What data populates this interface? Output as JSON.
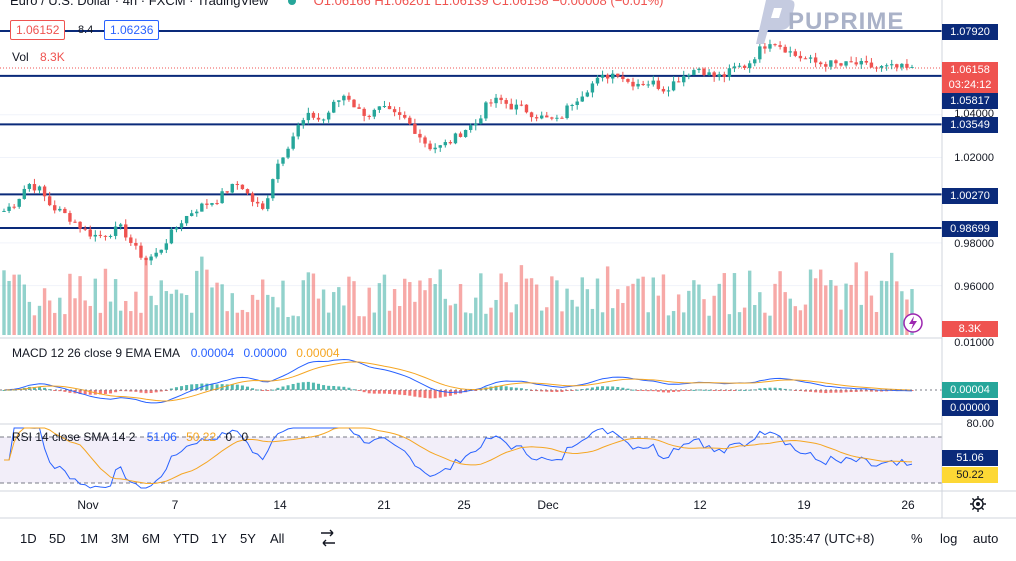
{
  "header": {
    "title": "Euro / U.S. Dollar · 4h · FXCM · TradingView",
    "ohlc": "O1.06166  H1.06201  L1.06139  C1.06158  −0.00008 (−0.01%)"
  },
  "quote": {
    "bid": "1.06152",
    "spread": "8.4",
    "ask": "1.06236"
  },
  "volume": {
    "label": "Vol",
    "value": "8.3K",
    "badge": "8.3K"
  },
  "watermark": {
    "brand": "PUPRIME"
  },
  "price_axis": {
    "ticks": [
      "1.04000",
      "1.02000",
      "0.98000",
      "0.96000"
    ],
    "levels": [
      "1.07920",
      "1.05817",
      "1.03549",
      "1.00270",
      "0.98699"
    ],
    "last_price": "1.06158",
    "countdown": "03:24:12"
  },
  "macd": {
    "label": "MACD 12 26 close 9 EMA EMA",
    "v1": "0.00004",
    "v2": "0.00000",
    "v3": "0.00004",
    "axis_top": "0.01000",
    "tag1": "0.00004",
    "tag2": "0.00000"
  },
  "rsi": {
    "label": "RSI 14 close SMA 14 2",
    "v1": "51.06",
    "v2": "50.22",
    "v3": "0",
    "v4": "0",
    "axis_top": "80.00",
    "tag1": "51.06",
    "tag2": "50.22"
  },
  "time_axis": [
    "Nov",
    "7",
    "14",
    "21",
    "25",
    "Dec",
    "12",
    "19",
    "26"
  ],
  "toolbar": {
    "ranges": [
      "1D",
      "5D",
      "1M",
      "3M",
      "6M",
      "YTD",
      "1Y",
      "5Y",
      "All"
    ],
    "clock": "10:35:47 (UTC+8)",
    "percent": "%",
    "log": "log",
    "auto": "auto"
  },
  "colors": {
    "up": "#26a69a",
    "down": "#ef5350",
    "level": "#0a2a7a",
    "macd": "#2962ff",
    "signal": "#f5a623",
    "rsi": "#2962ff"
  },
  "chart_data": {
    "type": "candlestick",
    "symbol": "EURUSD",
    "interval": "4h",
    "levels": [
      1.0792,
      1.05817,
      1.03549,
      1.0027,
      0.98699
    ],
    "last": 1.06158,
    "price_range": [
      0.952,
      1.09
    ],
    "close_path": [
      0.995,
      0.999,
      1.008,
      1.005,
      0.997,
      0.994,
      0.99,
      0.985,
      0.983,
      0.985,
      0.987,
      0.978,
      0.972,
      0.975,
      0.983,
      0.99,
      0.995,
      0.998,
      1.0,
      1.005,
      1.008,
      1.0,
      0.995,
      1.015,
      1.025,
      1.035,
      1.04,
      1.037,
      1.045,
      1.05,
      1.042,
      1.04,
      1.043,
      1.04,
      1.038,
      1.032,
      1.025,
      1.025,
      1.028,
      1.033,
      1.036,
      1.045,
      1.047,
      1.044,
      1.043,
      1.04,
      1.038,
      1.037,
      1.045,
      1.05,
      1.055,
      1.058,
      1.06,
      1.055,
      1.055,
      1.055,
      1.052,
      1.056,
      1.06,
      1.062,
      1.058,
      1.058,
      1.062,
      1.063,
      1.07,
      1.075,
      1.072,
      1.068,
      1.066,
      1.064,
      1.064,
      1.063,
      1.064,
      1.063,
      1.062,
      1.062,
      1.062,
      1.061
    ]
  }
}
